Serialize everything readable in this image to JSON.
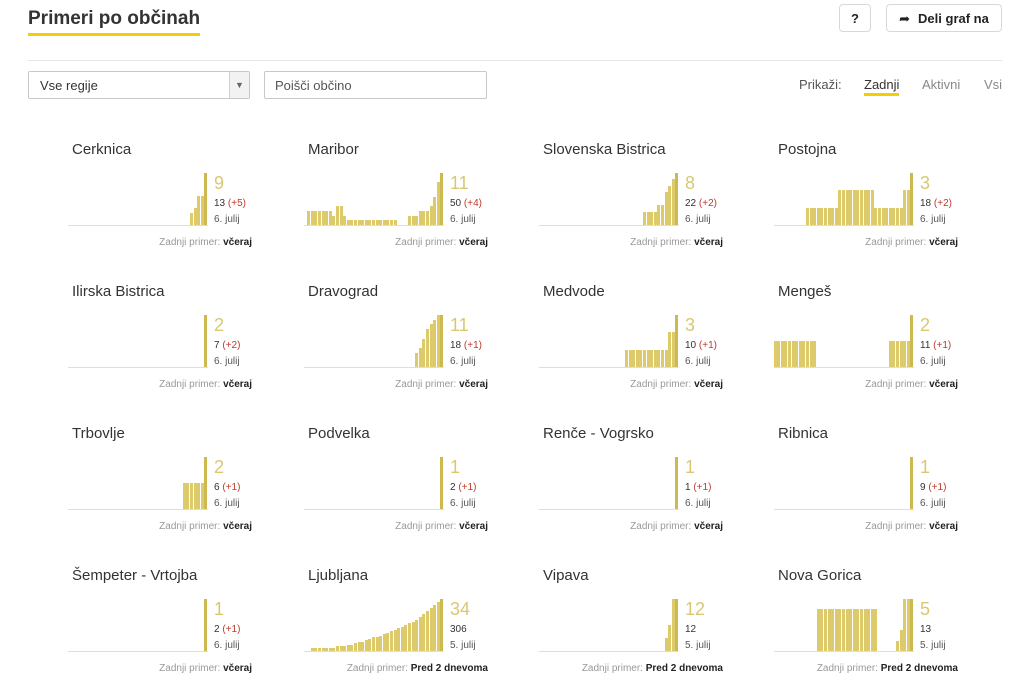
{
  "header": {
    "title": "Primeri po občinah",
    "help_label": "?",
    "share_label": "Deli graf na",
    "share_icon": "share-arrow-icon"
  },
  "filters": {
    "region_select": "Vse regije",
    "search_placeholder": "Poišči občino",
    "show_label": "Prikaži:",
    "tabs": [
      {
        "label": "Zadnji",
        "active": true
      },
      {
        "label": "Aktivni",
        "active": false
      },
      {
        "label": "Vsi",
        "active": false
      }
    ]
  },
  "colors": {
    "accent": "#f5cd00",
    "bar": "#dcca6b",
    "delta": "#c0392b"
  },
  "cards": [
    {
      "name": "Cerknica",
      "big": "9",
      "total": "13",
      "delta": "(+5)",
      "date": "6. julij",
      "last_label": "Zadnji primer:",
      "last_value": "včeraj",
      "bars": [
        0,
        0,
        0,
        0,
        0,
        0,
        0,
        0,
        0,
        0,
        0,
        0,
        0,
        0,
        0,
        0,
        0,
        0,
        0,
        0,
        0,
        0,
        0,
        0,
        0,
        0,
        0,
        0,
        0,
        0,
        0,
        0,
        0,
        0,
        2,
        3,
        5,
        5,
        9
      ]
    },
    {
      "name": "Maribor",
      "big": "11",
      "total": "50",
      "delta": "(+4)",
      "date": "6. julij",
      "last_label": "Zadnji primer:",
      "last_value": "včeraj",
      "bars": [
        3,
        3,
        3,
        3,
        3,
        3,
        3,
        2,
        4,
        4,
        2,
        1,
        1,
        1,
        1,
        1,
        1,
        1,
        1,
        1,
        1,
        1,
        1,
        1,
        1,
        0,
        0,
        0,
        2,
        2,
        2,
        3,
        3,
        3,
        4,
        6,
        9,
        11
      ]
    },
    {
      "name": "Slovenska Bistrica",
      "big": "8",
      "total": "22",
      "delta": "(+2)",
      "date": "6. julij",
      "last_label": "Zadnji primer:",
      "last_value": "včeraj",
      "bars": [
        0,
        0,
        0,
        0,
        0,
        0,
        0,
        0,
        0,
        0,
        0,
        0,
        0,
        0,
        0,
        0,
        0,
        0,
        0,
        0,
        0,
        0,
        0,
        0,
        0,
        0,
        0,
        0,
        0,
        2,
        2,
        2,
        2,
        3,
        3,
        5,
        6,
        7,
        8
      ]
    },
    {
      "name": "Postojna",
      "big": "3",
      "total": "18",
      "delta": "(+2)",
      "date": "6. julij",
      "last_label": "Zadnji primer:",
      "last_value": "včeraj",
      "bars": [
        0,
        0,
        0,
        0,
        0,
        0,
        0,
        0,
        0,
        1,
        1,
        1,
        1,
        1,
        1,
        1,
        1,
        1,
        2,
        2,
        2,
        2,
        2,
        2,
        2,
        2,
        2,
        2,
        1,
        1,
        1,
        1,
        1,
        1,
        1,
        1,
        2,
        2,
        3
      ]
    },
    {
      "name": "Ilirska Bistrica",
      "big": "2",
      "total": "7",
      "delta": "(+2)",
      "date": "6. julij",
      "last_label": "Zadnji primer:",
      "last_value": "včeraj",
      "bars": [
        0,
        0,
        0,
        0,
        0,
        0,
        0,
        0,
        0,
        0,
        0,
        0,
        0,
        0,
        0,
        0,
        0,
        0,
        0,
        0,
        0,
        0,
        0,
        0,
        0,
        0,
        0,
        0,
        0,
        0,
        0,
        0,
        0,
        0,
        0,
        0,
        0,
        0,
        2
      ]
    },
    {
      "name": "Dravograd",
      "big": "11",
      "total": "18",
      "delta": "(+1)",
      "date": "6. julij",
      "last_label": "Zadnji primer:",
      "last_value": "včeraj",
      "bars": [
        0,
        0,
        0,
        0,
        0,
        0,
        0,
        0,
        0,
        0,
        0,
        0,
        0,
        0,
        0,
        0,
        0,
        0,
        0,
        0,
        0,
        0,
        0,
        0,
        0,
        0,
        0,
        0,
        0,
        0,
        0,
        3,
        4,
        6,
        8,
        9,
        10,
        11,
        11
      ]
    },
    {
      "name": "Medvode",
      "big": "3",
      "total": "10",
      "delta": "(+1)",
      "date": "6. julij",
      "last_label": "Zadnji primer:",
      "last_value": "včeraj",
      "bars": [
        0,
        0,
        0,
        0,
        0,
        0,
        0,
        0,
        0,
        0,
        0,
        0,
        0,
        0,
        0,
        0,
        0,
        0,
        0,
        0,
        0,
        0,
        0,
        0,
        1,
        1,
        1,
        1,
        1,
        1,
        1,
        1,
        1,
        1,
        1,
        1,
        2,
        2,
        3
      ]
    },
    {
      "name": "Mengeš",
      "big": "2",
      "total": "11",
      "delta": "(+1)",
      "date": "6. julij",
      "last_label": "Zadnji primer:",
      "last_value": "včeraj",
      "bars": [
        1,
        1,
        1,
        1,
        1,
        1,
        1,
        1,
        1,
        1,
        1,
        1,
        0,
        0,
        0,
        0,
        0,
        0,
        0,
        0,
        0,
        0,
        0,
        0,
        0,
        0,
        0,
        0,
        0,
        0,
        0,
        0,
        1,
        1,
        1,
        1,
        1,
        1,
        2
      ]
    },
    {
      "name": "Trbovlje",
      "big": "2",
      "total": "6",
      "delta": "(+1)",
      "date": "6. julij",
      "last_label": "Zadnji primer:",
      "last_value": "včeraj",
      "bars": [
        0,
        0,
        0,
        0,
        0,
        0,
        0,
        0,
        0,
        0,
        0,
        0,
        0,
        0,
        0,
        0,
        0,
        0,
        0,
        0,
        0,
        0,
        0,
        0,
        0,
        0,
        0,
        0,
        0,
        0,
        0,
        0,
        1,
        1,
        1,
        1,
        1,
        1,
        2
      ]
    },
    {
      "name": "Podvelka",
      "big": "1",
      "total": "2",
      "delta": "(+1)",
      "date": "6. julij",
      "last_label": "Zadnji primer:",
      "last_value": "včeraj",
      "bars": [
        0,
        0,
        0,
        0,
        0,
        0,
        0,
        0,
        0,
        0,
        0,
        0,
        0,
        0,
        0,
        0,
        0,
        0,
        0,
        0,
        0,
        0,
        0,
        0,
        0,
        0,
        0,
        0,
        0,
        0,
        0,
        0,
        0,
        0,
        0,
        0,
        0,
        0,
        1
      ]
    },
    {
      "name": "Renče - Vogrsko",
      "big": "1",
      "total": "1",
      "delta": "(+1)",
      "date": "6. julij",
      "last_label": "Zadnji primer:",
      "last_value": "včeraj",
      "bars": [
        0,
        0,
        0,
        0,
        0,
        0,
        0,
        0,
        0,
        0,
        0,
        0,
        0,
        0,
        0,
        0,
        0,
        0,
        0,
        0,
        0,
        0,
        0,
        0,
        0,
        0,
        0,
        0,
        0,
        0,
        0,
        0,
        0,
        0,
        0,
        0,
        0,
        0,
        1
      ]
    },
    {
      "name": "Ribnica",
      "big": "1",
      "total": "9",
      "delta": "(+1)",
      "date": "6. julij",
      "last_label": "Zadnji primer:",
      "last_value": "včeraj",
      "bars": [
        0,
        0,
        0,
        0,
        0,
        0,
        0,
        0,
        0,
        0,
        0,
        0,
        0,
        0,
        0,
        0,
        0,
        0,
        0,
        0,
        0,
        0,
        0,
        0,
        0,
        0,
        0,
        0,
        0,
        0,
        0,
        0,
        0,
        0,
        0,
        0,
        0,
        0,
        1
      ]
    },
    {
      "name": "Šempeter - Vrtojba",
      "big": "1",
      "total": "2",
      "delta": "(+1)",
      "date": "6. julij",
      "last_label": "Zadnji primer:",
      "last_value": "včeraj",
      "bars": [
        0,
        0,
        0,
        0,
        0,
        0,
        0,
        0,
        0,
        0,
        0,
        0,
        0,
        0,
        0,
        0,
        0,
        0,
        0,
        0,
        0,
        0,
        0,
        0,
        0,
        0,
        0,
        0,
        0,
        0,
        0,
        0,
        0,
        0,
        0,
        0,
        0,
        0,
        1
      ]
    },
    {
      "name": "Ljubljana",
      "big": "34",
      "total": "306",
      "delta": "",
      "date": "5. julij",
      "last_label": "Zadnji primer:",
      "last_value": "Pred 2 dnevoma",
      "bars": [
        2,
        2,
        2,
        2,
        2,
        2,
        2,
        3,
        3,
        3,
        4,
        4,
        5,
        6,
        6,
        7,
        8,
        9,
        9,
        10,
        11,
        12,
        13,
        14,
        15,
        16,
        17,
        18,
        19,
        20,
        22,
        24,
        26,
        28,
        30,
        32,
        34
      ]
    },
    {
      "name": "Vipava",
      "big": "12",
      "total": "12",
      "delta": "",
      "date": "5. julij",
      "last_label": "Zadnji primer:",
      "last_value": "Pred 2 dnevoma",
      "bars": [
        0,
        0,
        0,
        0,
        0,
        0,
        0,
        0,
        0,
        0,
        0,
        0,
        0,
        0,
        0,
        0,
        0,
        0,
        0,
        0,
        0,
        0,
        0,
        0,
        0,
        0,
        0,
        0,
        0,
        0,
        0,
        0,
        0,
        3,
        6,
        12,
        12
      ]
    },
    {
      "name": "Nova Gorica",
      "big": "5",
      "total": "13",
      "delta": "",
      "date": "5. julij",
      "last_label": "Zadnji primer:",
      "last_value": "Pred 2 dnevoma",
      "bars": [
        0,
        0,
        0,
        0,
        0,
        0,
        0,
        0,
        0,
        0,
        4,
        4,
        4,
        4,
        4,
        4,
        4,
        4,
        4,
        4,
        4,
        4,
        4,
        4,
        4,
        4,
        4,
        0,
        0,
        0,
        0,
        0,
        1,
        2,
        5,
        5,
        5
      ]
    }
  ]
}
